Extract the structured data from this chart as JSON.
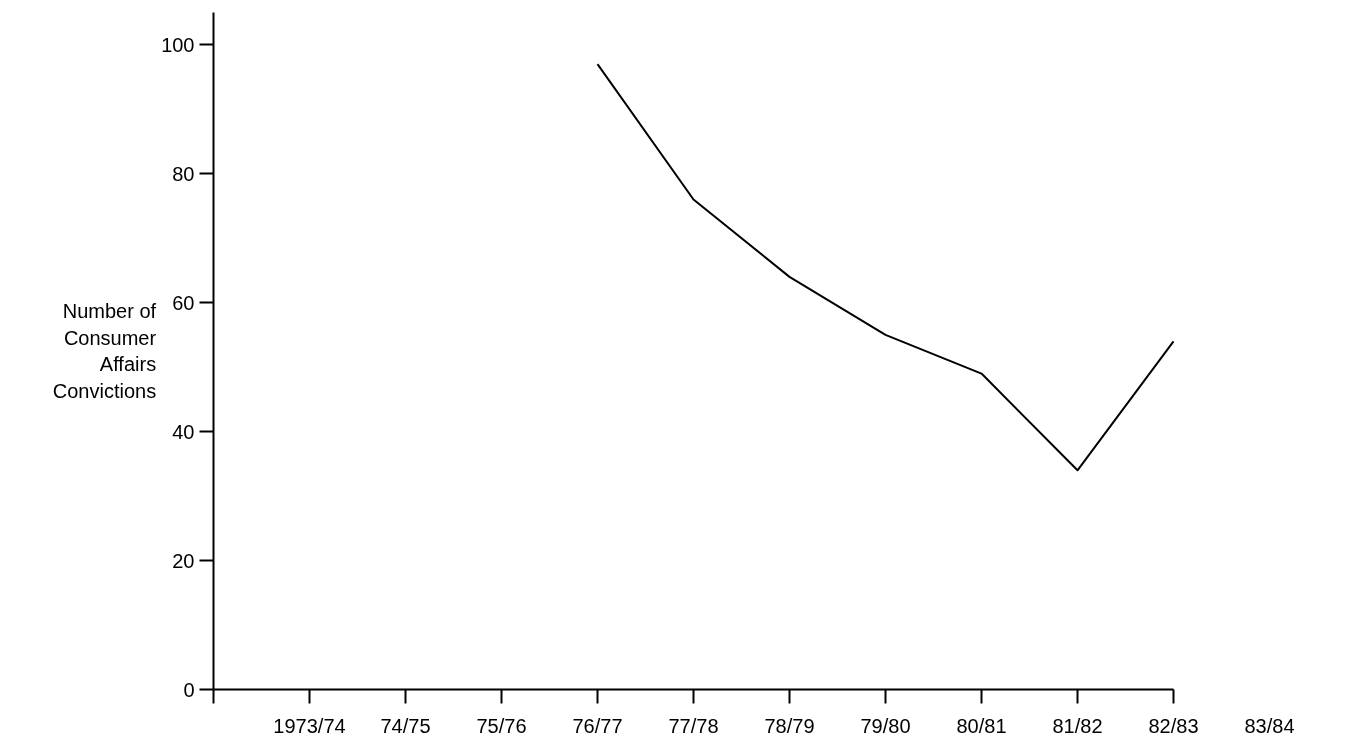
{
  "chart_data": {
    "type": "line",
    "ylabel": "Number of\nConsumer\nAffairs\nConvictions",
    "categories": [
      "1973/74",
      "74/75",
      "75/76",
      "76/77",
      "77/78",
      "78/79",
      "79/80",
      "80/81",
      "81/82",
      "82/83",
      "83/84"
    ],
    "series": [
      {
        "color": "#000000",
        "values": [
          null,
          null,
          null,
          97,
          76,
          64,
          55,
          49,
          34,
          54,
          null
        ]
      }
    ],
    "ylim": [
      0,
      105
    ],
    "yticks": [
      0,
      20,
      40,
      60,
      80,
      100
    ]
  }
}
